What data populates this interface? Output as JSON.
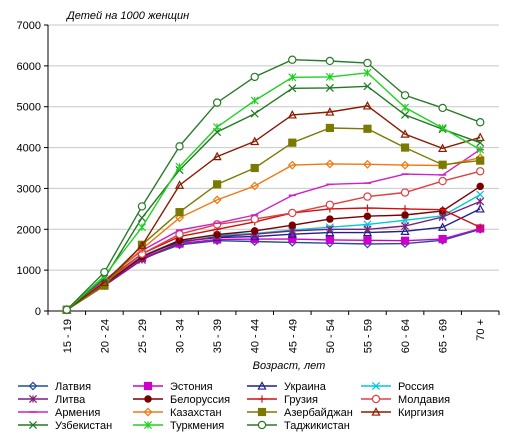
{
  "chart_data": {
    "type": "line",
    "title": "Детей на 1000 женщин",
    "xlabel": "Возраст, лет",
    "ylabel": "",
    "ylim": [
      0,
      7000
    ],
    "yticks": [
      0,
      1000,
      2000,
      3000,
      4000,
      5000,
      6000,
      7000
    ],
    "grid": "horizontal",
    "legend_position": "bottom",
    "categories": [
      "15 - 19",
      "20 - 24",
      "25 - 29",
      "30 - 34",
      "35 - 39",
      "40 - 44",
      "45 - 49",
      "50 - 54",
      "55 - 59",
      "60 - 64",
      "65 - 69",
      "70 +"
    ],
    "series": [
      {
        "name": "Латвия",
        "color": "#1f4e9c",
        "marker": "diamond",
        "values": [
          30,
          620,
          1280,
          1620,
          1720,
          1700,
          1680,
          1660,
          1640,
          1650,
          1730,
          2000
        ]
      },
      {
        "name": "Эстония",
        "color": "#cc00cc",
        "marker": "square",
        "values": [
          30,
          630,
          1300,
          1650,
          1750,
          1760,
          1760,
          1740,
          1730,
          1720,
          1760,
          2020
        ]
      },
      {
        "name": "Украина",
        "color": "#1f1f8f",
        "marker": "triangle",
        "values": [
          30,
          650,
          1340,
          1700,
          1800,
          1820,
          1880,
          1920,
          1920,
          1950,
          2050,
          2500
        ]
      },
      {
        "name": "Россия",
        "color": "#00c8d8",
        "marker": "x",
        "values": [
          30,
          640,
          1350,
          1730,
          1860,
          1900,
          1980,
          2050,
          2120,
          2220,
          2330,
          2850
        ]
      },
      {
        "name": "Литва",
        "color": "#7a1f7a",
        "marker": "star",
        "values": [
          30,
          620,
          1250,
          1680,
          1820,
          1880,
          1960,
          2000,
          2000,
          2080,
          2300,
          2680
        ]
      },
      {
        "name": "Белоруссия",
        "color": "#7a0000",
        "marker": "circle",
        "values": [
          30,
          650,
          1330,
          1730,
          1870,
          1960,
          2100,
          2250,
          2320,
          2350,
          2450,
          3050
        ]
      },
      {
        "name": "Грузия",
        "color": "#d01010",
        "marker": "plus",
        "values": [
          30,
          720,
          1400,
          1820,
          2000,
          2180,
          2400,
          2500,
          2520,
          2500,
          2480,
          2050
        ]
      },
      {
        "name": "Молдавия",
        "color": "#e04040",
        "marker": "ocircle",
        "values": [
          30,
          680,
          1400,
          1880,
          2120,
          2250,
          2400,
          2600,
          2800,
          2900,
          3180,
          3420
        ]
      },
      {
        "name": "Армения",
        "color": "#cc22cc",
        "marker": "dash",
        "values": [
          30,
          750,
          1480,
          1980,
          2150,
          2350,
          2830,
          3100,
          3130,
          3350,
          3330,
          3950
        ]
      },
      {
        "name": "Казахстан",
        "color": "#f07810",
        "marker": "diamond",
        "values": [
          30,
          700,
          1520,
          2280,
          2720,
          3060,
          3570,
          3600,
          3590,
          3570,
          3560,
          3750
        ]
      },
      {
        "name": "Азербайджан",
        "color": "#7a7a00",
        "marker": "square",
        "values": [
          30,
          620,
          1620,
          2420,
          3100,
          3500,
          4120,
          4480,
          4460,
          4000,
          3580,
          3680
        ]
      },
      {
        "name": "Киргизия",
        "color": "#8c1a00",
        "marker": "triangle",
        "values": [
          30,
          700,
          1600,
          3080,
          3780,
          4150,
          4800,
          4870,
          5020,
          4330,
          3980,
          4250
        ]
      },
      {
        "name": "Узбекистан",
        "color": "#207a20",
        "marker": "x",
        "values": [
          30,
          800,
          2280,
          3450,
          4380,
          4830,
          5450,
          5460,
          5500,
          4800,
          4450,
          4120
        ]
      },
      {
        "name": "Туркмения",
        "color": "#20d020",
        "marker": "star",
        "values": [
          30,
          860,
          2050,
          3530,
          4500,
          5150,
          5720,
          5730,
          5830,
          4980,
          4480,
          3950
        ]
      },
      {
        "name": "Таджикистан",
        "color": "#2a7a2a",
        "marker": "ocircle",
        "values": [
          30,
          950,
          2560,
          4030,
          5100,
          5730,
          6150,
          6120,
          6070,
          5280,
          4970,
          4620
        ]
      }
    ]
  }
}
